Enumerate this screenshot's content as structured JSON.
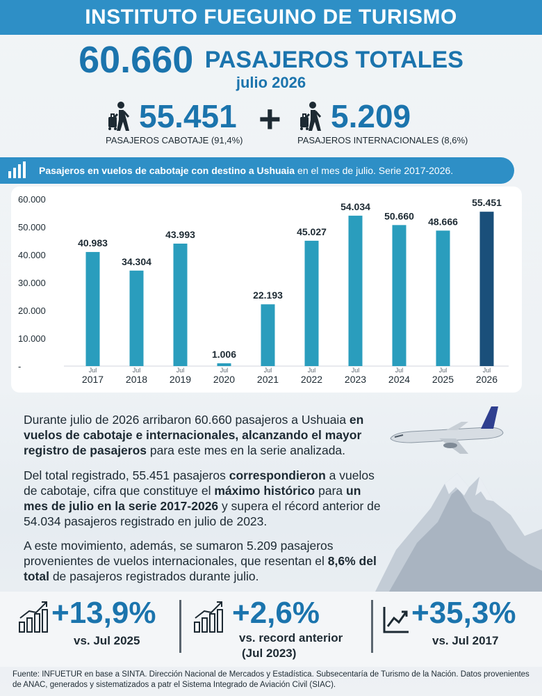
{
  "header": {
    "title": "INSTITUTO FUEGUINO DE TURISMO"
  },
  "summary": {
    "total_value": "60.660",
    "total_label": "PASAJEROS TOTALES",
    "month": "julio 2026",
    "domestic_value": "55.451",
    "domestic_caption": "PASAJEROS CABOTAJE (91,4%)",
    "plus": "+",
    "international_value": "5.209",
    "international_caption": "PASAJEROS INTERNACIONALES (8,6%)"
  },
  "chart_header": {
    "bold": "Pasajeros en vuelos de cabotaje con destino a Ushuaia",
    "rest": "en el mes de julio. Serie 2017-2026."
  },
  "chart_data": {
    "type": "bar",
    "title": "Pasajeros en vuelos de cabotaje con destino a Ushuaia en el mes de julio. Serie 2017-2026.",
    "categories": [
      "2017",
      "2018",
      "2019",
      "2020",
      "2021",
      "2022",
      "2023",
      "2024",
      "2025",
      "2026"
    ],
    "month_label": "Jul",
    "values": [
      40983,
      34304,
      43993,
      1006,
      22193,
      45027,
      54034,
      50660,
      48666,
      55451
    ],
    "value_labels": [
      "40.983",
      "34.304",
      "43.993",
      "1.006",
      "22.193",
      "45.027",
      "54.034",
      "50.660",
      "48.666",
      "55.451"
    ],
    "ylim": [
      0,
      60000
    ],
    "yticks": [
      0,
      10000,
      20000,
      30000,
      40000,
      50000,
      60000
    ],
    "ytick_labels": [
      "-",
      "10.000",
      "20.000",
      "30.000",
      "40.000",
      "50.000",
      "60.000"
    ],
    "grid": false,
    "colors": {
      "default": "#2a9dbd",
      "highlight": "#1a4f7a"
    },
    "highlight_index": 9
  },
  "paragraphs": {
    "p1": {
      "a": "Durante julio de 2026 arribaron 60.660 pasajeros a Ushuaia ",
      "b": "en vuelos de cabotaje e internacionales, alcanzando el mayor registro de pasajeros",
      "c": " para este mes en la serie analizada."
    },
    "p2": {
      "a": "Del total registrado, 55.451 pasajeros ",
      "b": "correspondieron",
      "c": " a vuelos de cabotaje, cifra que constituye el ",
      "d": "máximo histórico",
      "e": " para ",
      "f": "un mes de julio en la serie 2017-2026",
      "g": " y supera el récord anterior de 54.034 pasajeros registrado en julio de 2023."
    },
    "p3": {
      "a": "A este movimiento, además, se sumaron 5.209 pasajeros provenientes de vuelos internacionales, que resentan el ",
      "b": "8,6% del total",
      "c": " de pasajeros registrados durante julio."
    }
  },
  "kpis": [
    {
      "value": "+13,9%",
      "caption": "vs. Jul 2025"
    },
    {
      "value": "+2,6%",
      "caption": "vs. record anterior",
      "caption2": "(Jul 2023)"
    },
    {
      "value": "+35,3%",
      "caption": "vs. Jul 2017"
    }
  ],
  "source": "Fuente: INFUETUR en base a SINTA. Dirección Nacional de Mercados y Estadística. Subsecentaría de Turismo de la Nación. Datos provenientes de ANAC, generados y sistematizados a patr el Sistema Integrado de Aviación Civil (SIAC).",
  "colors": {
    "brand": "#2e8fc6",
    "accent": "#1b74ad",
    "text": "#1d2a33"
  },
  "icons": [
    "traveler-icon",
    "bar-chart-icon",
    "growth-chart-icon",
    "trend-up-icon",
    "airplane-image",
    "mountain-image"
  ]
}
